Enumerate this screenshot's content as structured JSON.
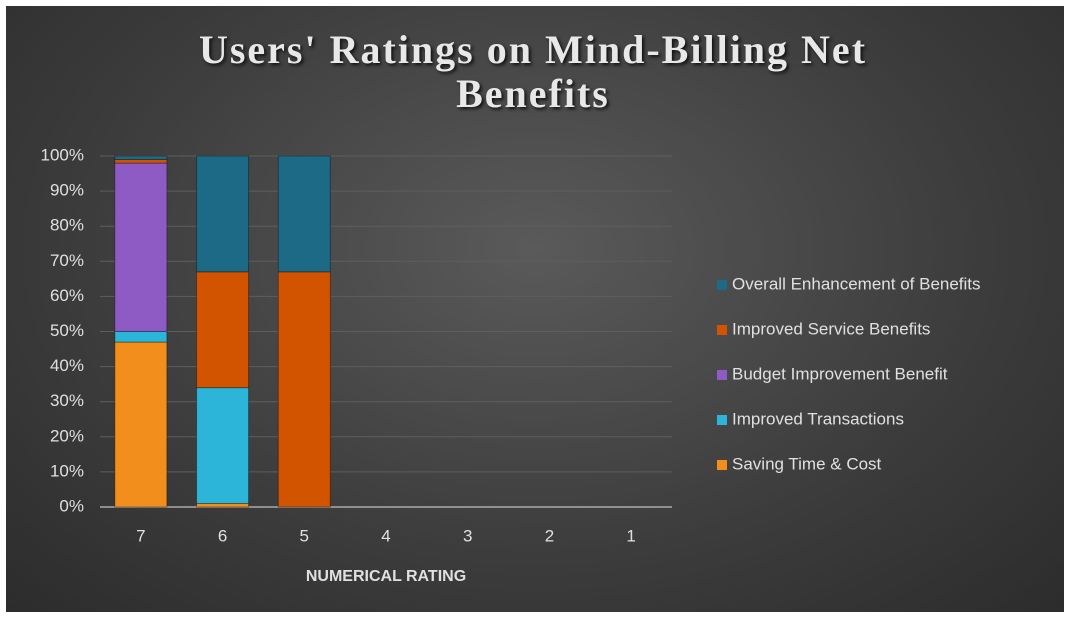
{
  "chart_data": {
    "type": "stacked_bar",
    "title": "Users' Ratings on Mind-Billing Net Benefits",
    "xlabel": "NUMERICAL RATING",
    "categories": [
      "7",
      "6",
      "5",
      "4",
      "3",
      "2",
      "1"
    ],
    "series": [
      {
        "name": "Saving Time & Cost",
        "color": "#f28e1c",
        "values": [
          47,
          1,
          0,
          0,
          0,
          0,
          0
        ]
      },
      {
        "name": "Improved Transactions",
        "color": "#2cb5d8",
        "values": [
          3,
          33,
          0,
          0,
          0,
          0,
          0
        ]
      },
      {
        "name": "Budget Improvement Benefit",
        "color": "#8e5bc4",
        "values": [
          48,
          0,
          0,
          0,
          0,
          0,
          0
        ]
      },
      {
        "name": "Improved Service Benefits",
        "color": "#d35400",
        "values": [
          1,
          33,
          67,
          0,
          0,
          0,
          0
        ]
      },
      {
        "name": "Overall Enhancement of Benefits",
        "color": "#1c6a86",
        "values": [
          1,
          33,
          33,
          0,
          0,
          0,
          0
        ]
      }
    ],
    "ylim": [
      0,
      100
    ],
    "yticks": [
      {
        "value": 0,
        "label": "0%"
      },
      {
        "value": 10,
        "label": "10%"
      },
      {
        "value": 20,
        "label": "20%"
      },
      {
        "value": 30,
        "label": "30%"
      },
      {
        "value": 40,
        "label": "40%"
      },
      {
        "value": 50,
        "label": "50%"
      },
      {
        "value": 60,
        "label": "60%"
      },
      {
        "value": 70,
        "label": "70%"
      },
      {
        "value": 80,
        "label": "80%"
      },
      {
        "value": 90,
        "label": "90%"
      },
      {
        "value": 100,
        "label": "100%"
      }
    ],
    "grid": true,
    "legend": "right"
  }
}
